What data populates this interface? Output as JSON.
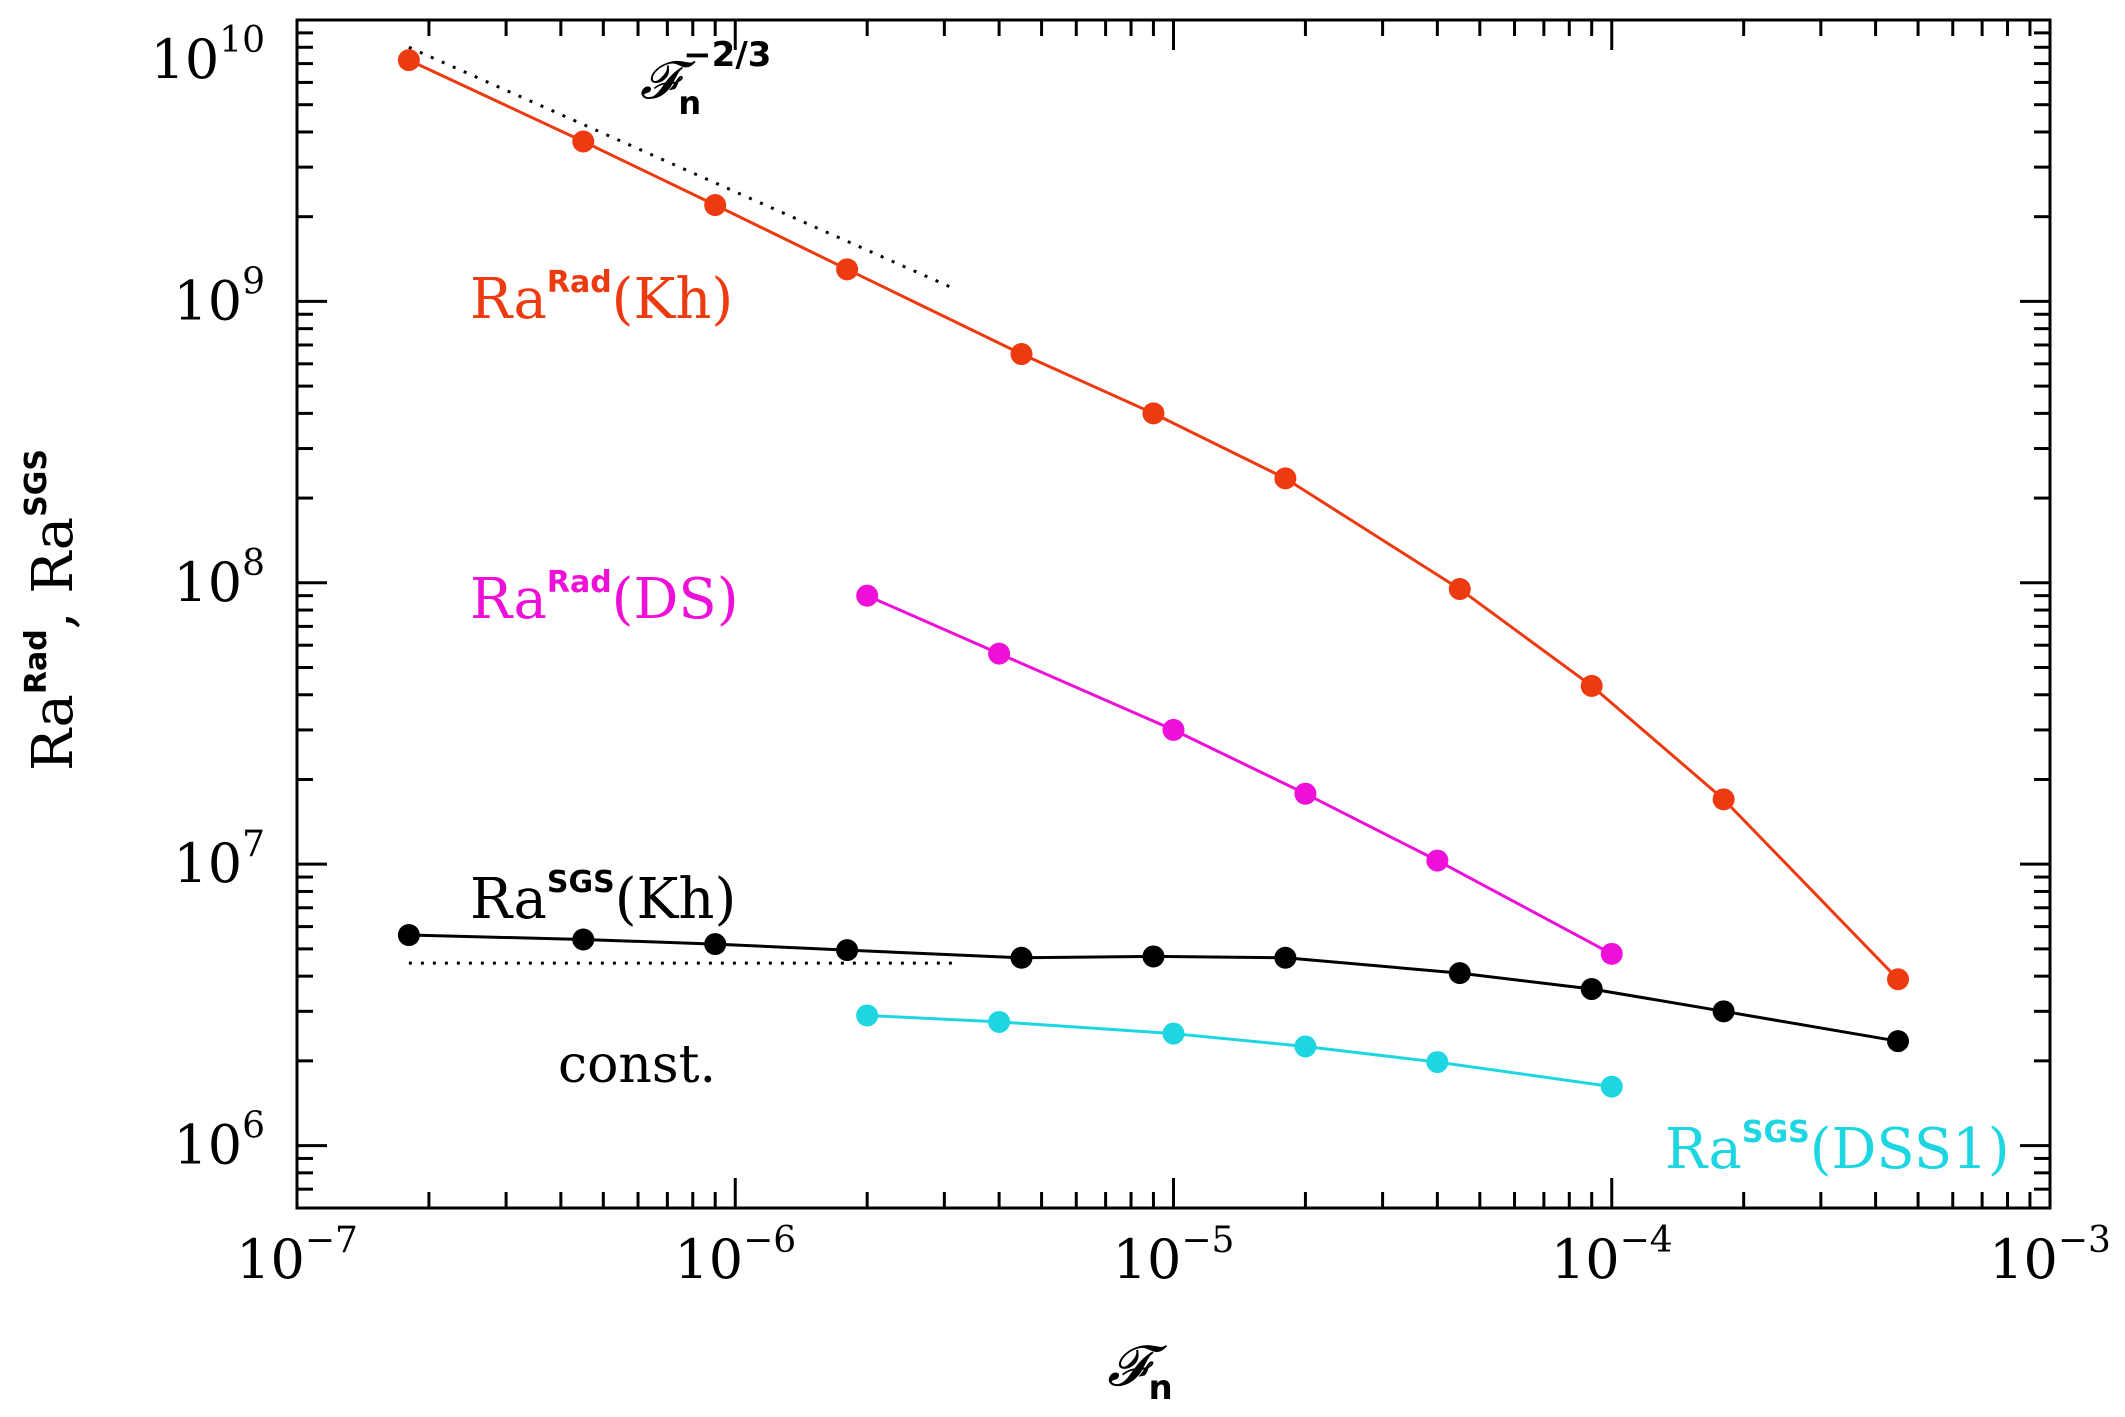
{
  "chart_data": {
    "type": "line",
    "scale": {
      "x": "log",
      "y": "log"
    },
    "xlim": [
      1e-07,
      0.001
    ],
    "ylim": [
      600000.0,
      10000000000.0
    ],
    "xlabel": "𝓕n",
    "ylabel": "Ra^Rad, Ra^SGS",
    "x_tick_labels": [
      {
        "base": "10",
        "exp": "−7"
      },
      {
        "base": "10",
        "exp": "−6"
      },
      {
        "base": "10",
        "exp": "−5"
      },
      {
        "base": "10",
        "exp": "−4"
      },
      {
        "base": "10",
        "exp": "−3"
      }
    ],
    "y_tick_labels": [
      {
        "base": "10",
        "exp": "6"
      },
      {
        "base": "10",
        "exp": "7"
      },
      {
        "base": "10",
        "exp": "8"
      },
      {
        "base": "10",
        "exp": "9"
      },
      {
        "base": "10",
        "exp": "10"
      }
    ],
    "series": [
      {
        "name": "Ra^Rad(Kh)",
        "label_base": "Ra",
        "label_sup": "Rad",
        "label_tail": "(Kh)",
        "color": "#ee3a10",
        "x": [
          1.8e-07,
          4.5e-07,
          9e-07,
          1.8e-06,
          4.5e-06,
          9e-06,
          1.8e-05,
          4.5e-05,
          9e-05,
          0.00018,
          0.00045
        ],
        "y": [
          7200000000.0,
          3700000000.0,
          2200000000.0,
          1300000000.0,
          650000000.0,
          400000000.0,
          235000000.0,
          95000000.0,
          43000000.0,
          17000000.0,
          3900000.0
        ]
      },
      {
        "name": "Ra^Rad(DS)",
        "label_base": "Ra",
        "label_sup": "Rad",
        "label_tail": "(DS)",
        "color": "#ee10d8",
        "x": [
          2e-06,
          4e-06,
          1e-05,
          2e-05,
          4e-05,
          0.0001
        ],
        "y": [
          90000000.0,
          56000000.0,
          30000000.0,
          17800000.0,
          10300000.0,
          4800000.0
        ]
      },
      {
        "name": "Ra^SGS(Kh)",
        "label_base": "Ra",
        "label_sup": "SGS",
        "label_tail": "(Kh)",
        "color": "#000000",
        "x": [
          1.8e-07,
          4.5e-07,
          9e-07,
          1.8e-06,
          4.5e-06,
          9e-06,
          1.8e-05,
          4.5e-05,
          9e-05,
          0.00018,
          0.00045
        ],
        "y": [
          5600000.0,
          5400000.0,
          5200000.0,
          4950000.0,
          4650000.0,
          4700000.0,
          4650000.0,
          4100000.0,
          3600000.0,
          3000000.0,
          2350000.0
        ]
      },
      {
        "name": "Ra^SGS(DSS1)",
        "label_base": "Ra",
        "label_sup": "SGS",
        "label_tail": "(DSS1)",
        "color": "#1ed6e2",
        "x": [
          2e-06,
          4e-06,
          1e-05,
          2e-05,
          4e-05,
          0.0001
        ],
        "y": [
          2900000.0,
          2750000.0,
          2500000.0,
          2250000.0,
          1980000.0,
          1620000.0
        ]
      }
    ],
    "reference_lines": [
      {
        "name": "Fn^-2/3",
        "label_base": "𝓕",
        "label_sub": "n",
        "label_sup": "−2/3",
        "x": [
          1.8e-07,
          3.2e-06
        ],
        "y": [
          8000000000.0,
          1100000000.0
        ],
        "style": "dotted"
      },
      {
        "name": "const.",
        "label": "const.",
        "x": [
          1.8e-07,
          3.2e-06
        ],
        "y": [
          4450000.0,
          4450000.0
        ],
        "style": "dotted"
      }
    ]
  }
}
